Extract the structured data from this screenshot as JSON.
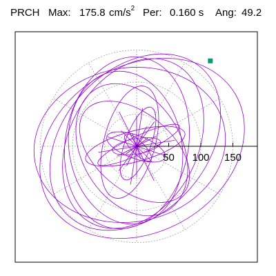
{
  "header": {
    "station": "PRCH",
    "max_label": "Max:",
    "max_value": "175.8",
    "max_unit": "cm/s",
    "max_unit_exp": "2",
    "per_label": "Per:",
    "per_value": "0.160 s",
    "ang_label": "Ang:",
    "ang_value": "49.2"
  },
  "chart_data": {
    "type": "polar-orbit",
    "units": "cm/s^2",
    "max_amplitude": 175.8,
    "period_s": 0.16,
    "angle_deg": 49.2,
    "rings": [
      50,
      100,
      150
    ],
    "tick_labels": [
      "50",
      "100",
      "150"
    ],
    "radial_spoke_step_deg": 30,
    "max_point": {
      "angle_deg": 49.2,
      "amplitude": 175.8
    },
    "trace_color": "#9400d3",
    "marker_color": "#009e73",
    "grid_color": "#a0a0a0",
    "orbits": [
      {
        "a": 168,
        "b": 130,
        "rot_deg": 30,
        "cx": 8,
        "cy": 3
      },
      {
        "a": 155,
        "b": 112,
        "rot_deg": 48,
        "cx": -2,
        "cy": -6
      },
      {
        "a": 150,
        "b": 120,
        "rot_deg": 10,
        "cx": -10,
        "cy": -2
      },
      {
        "a": 140,
        "b": 100,
        "rot_deg": 62,
        "cx": -5,
        "cy": -4
      },
      {
        "a": 135,
        "b": 96,
        "rot_deg": 80,
        "cx": -14,
        "cy": -5
      },
      {
        "a": 120,
        "b": 88,
        "rot_deg": 100,
        "cx": -16,
        "cy": 2
      },
      {
        "a": 110,
        "b": 78,
        "rot_deg": 120,
        "cx": -7,
        "cy": 5
      },
      {
        "a": 100,
        "b": 60,
        "rot_deg": 140,
        "cx": -3,
        "cy": 8
      },
      {
        "a": 90,
        "b": 40,
        "rot_deg": 75,
        "cx": -10,
        "cy": -6
      },
      {
        "a": 80,
        "b": 24,
        "rot_deg": 15,
        "cx": -2,
        "cy": 0
      },
      {
        "a": 70,
        "b": 14,
        "rot_deg": 25,
        "cx": 3,
        "cy": -2
      },
      {
        "a": 60,
        "b": 20,
        "rot_deg": 70,
        "cx": 2,
        "cy": -4
      },
      {
        "a": 48,
        "b": 18,
        "rot_deg": 160,
        "cx": -1,
        "cy": 1
      },
      {
        "a": 38,
        "b": 12,
        "rot_deg": 10,
        "cx": 0,
        "cy": 0
      },
      {
        "a": 28,
        "b": 10,
        "rot_deg": 135,
        "cx": 2,
        "cy": 2
      }
    ]
  }
}
